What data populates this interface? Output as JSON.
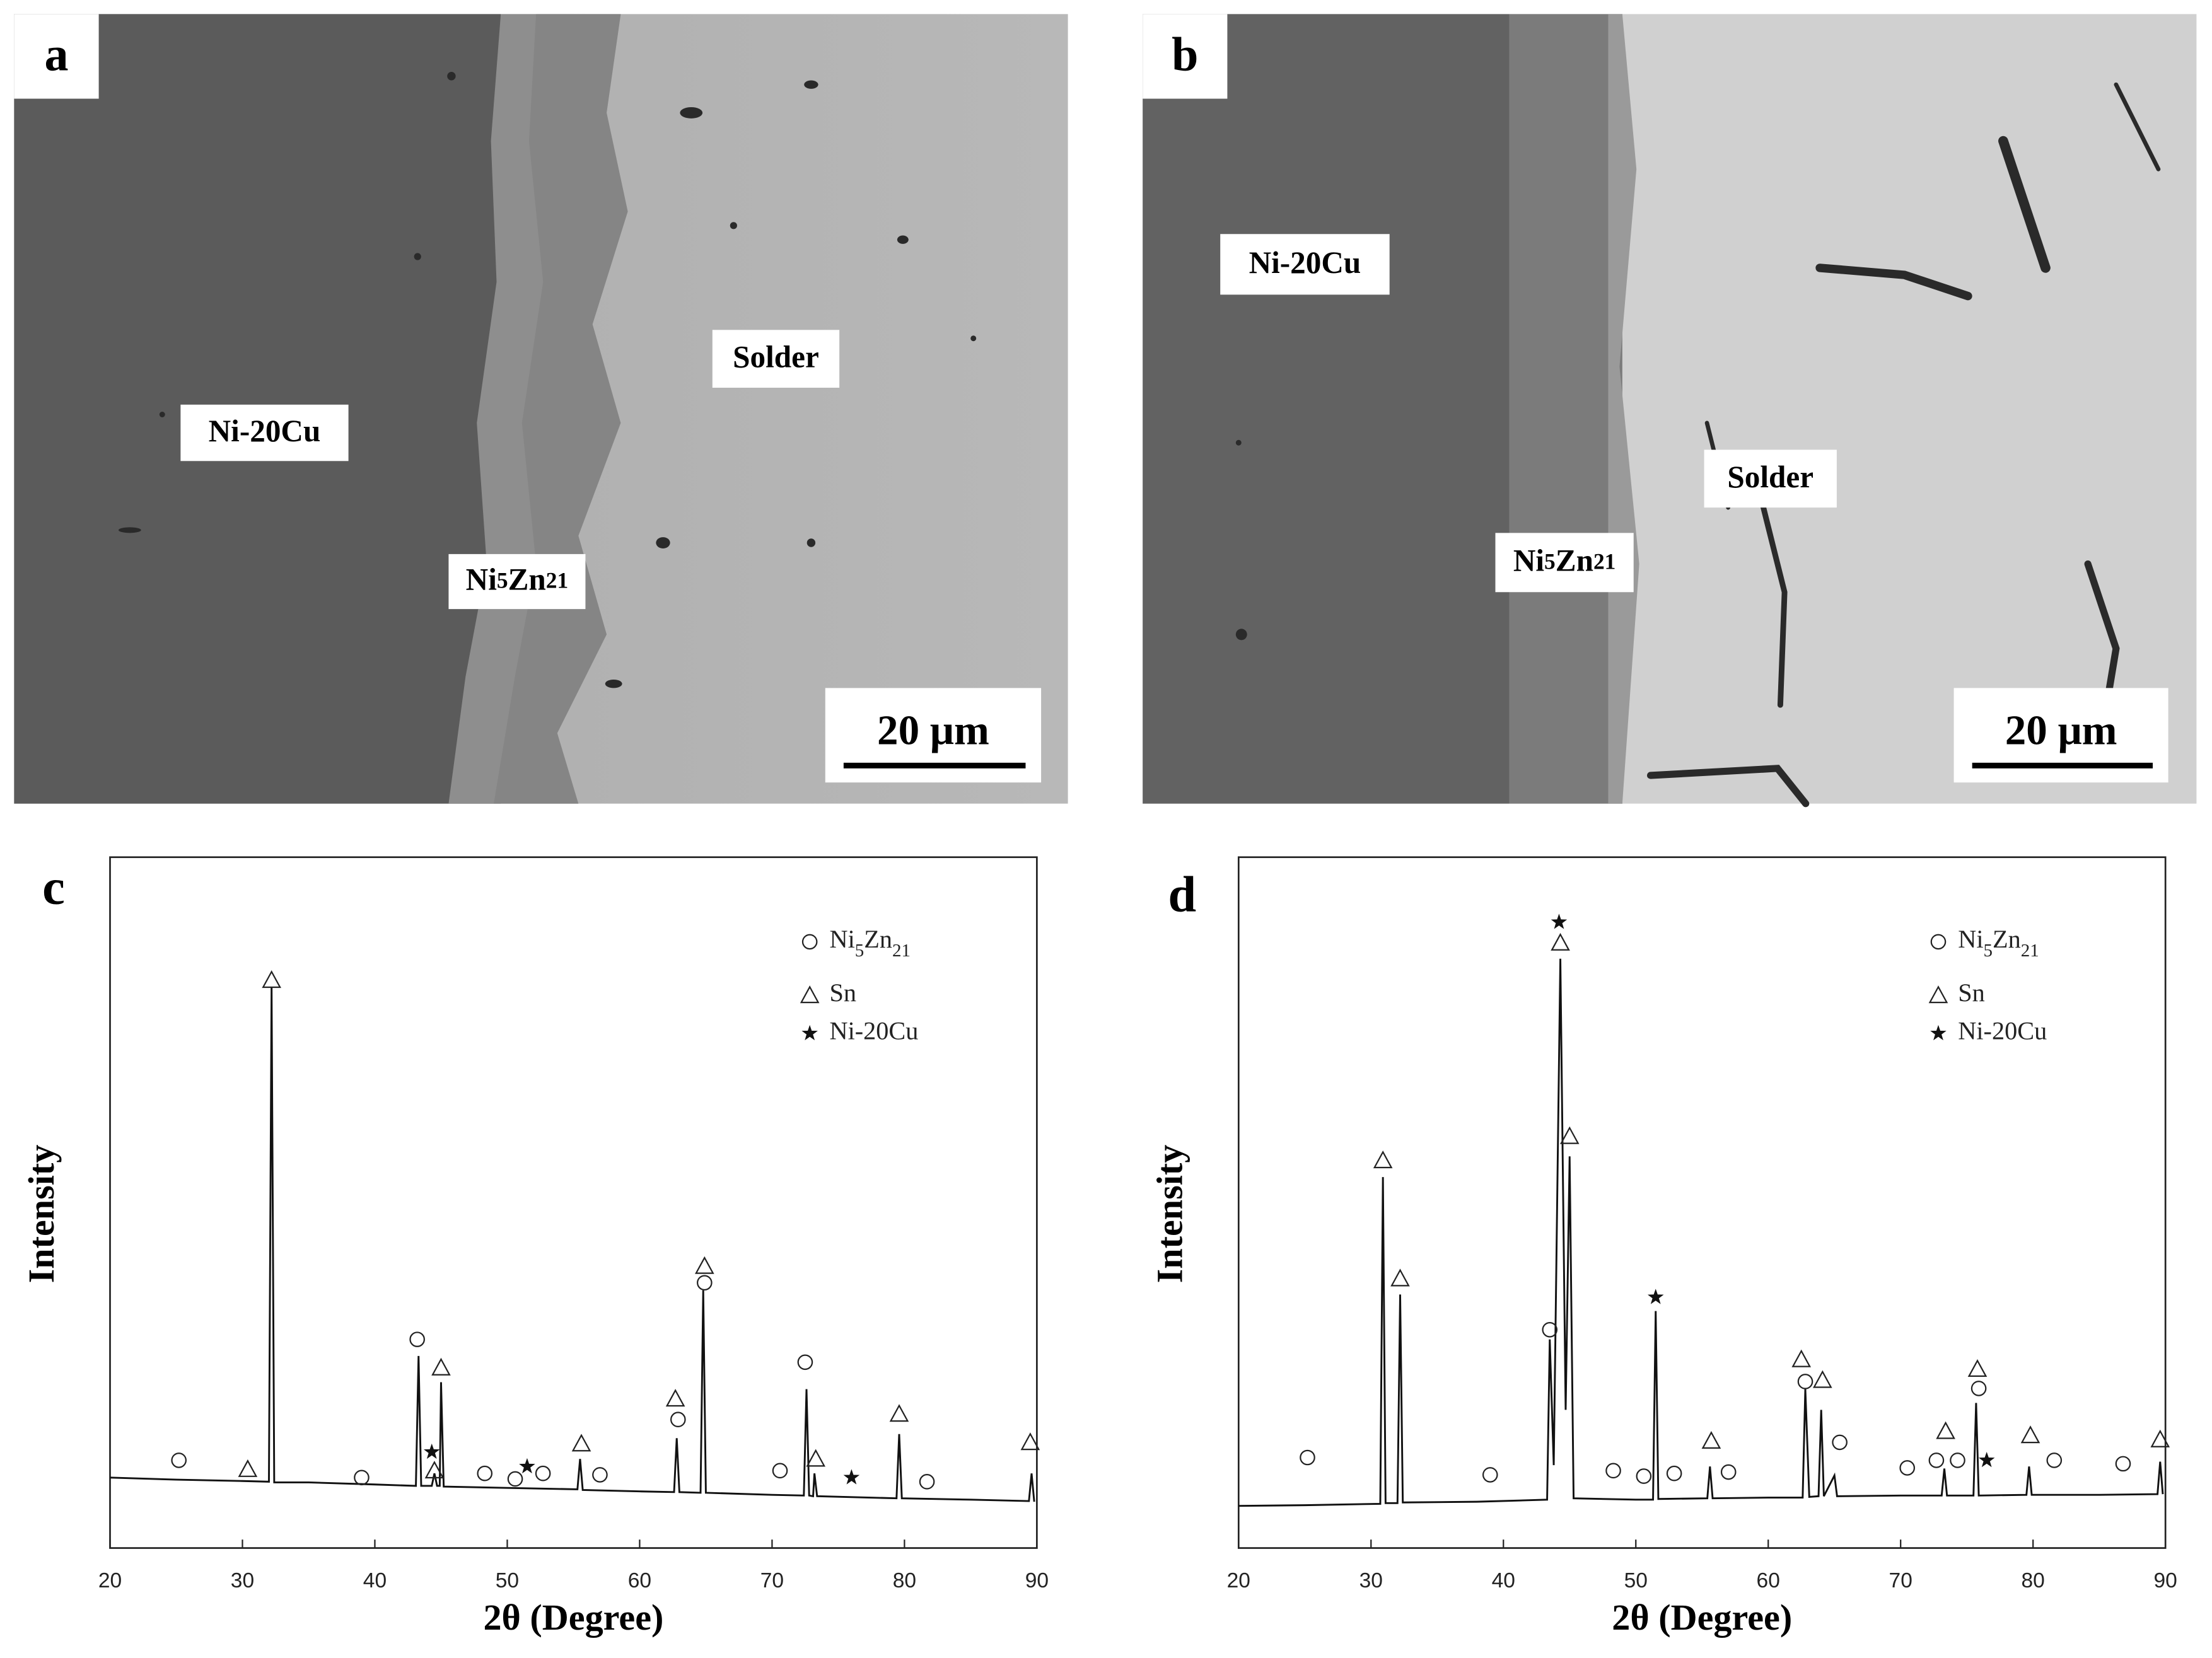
{
  "panels": [
    {
      "label": "a",
      "annotations": [
        "Ni-20Cu",
        "Ni5Zn21",
        "Solder"
      ],
      "scale_bar": "20 μm"
    },
    {
      "label": "b",
      "annotations": [
        "Ni-20Cu",
        "Ni5Zn21",
        "Solder"
      ],
      "scale_bar": "20 μm"
    }
  ],
  "chart_data": [
    {
      "type": "line",
      "panel_label": "c",
      "xlabel": "2θ (Degree)",
      "ylabel": "Intensity",
      "xlim": [
        20,
        90
      ],
      "ylim": [
        0,
        100
      ],
      "xticks": [
        20,
        30,
        40,
        50,
        60,
        70,
        80,
        90
      ],
      "x": [
        20,
        25,
        30,
        32.0,
        32.2,
        32.4,
        35,
        40,
        43.1,
        43.3,
        43.5,
        44.3,
        44.5,
        44.7,
        44.9,
        45.0,
        45.2,
        50,
        55.3,
        55.5,
        55.7,
        60,
        62.6,
        62.8,
        63.0,
        64.6,
        64.8,
        65.0,
        70,
        72.4,
        72.6,
        72.8,
        73.1,
        73.2,
        73.4,
        79.4,
        79.6,
        79.8,
        85,
        89.4,
        89.6,
        89.8
      ],
      "series": [
        {
          "color": "#111111",
          "values": [
            10.2,
            9.9,
            9.7,
            9.6,
            81.2,
            9.5,
            9.5,
            9.2,
            9.0,
            27.8,
            9.0,
            9.0,
            10.8,
            9.0,
            9.0,
            24,
            8.9,
            8.7,
            8.5,
            12.9,
            8.4,
            8.2,
            8.1,
            15.9,
            8.1,
            8.0,
            37.3,
            8.0,
            7.7,
            7.6,
            23,
            7.6,
            7.5,
            10.8,
            7.5,
            7.2,
            16.5,
            7.2,
            7.0,
            6.8,
            10.8,
            6.7
          ]
        }
      ],
      "markers": [
        {
          "name": "Ni5Zn21",
          "symbol": "circle",
          "subscript": true,
          "x": [
            25.2,
            39,
            43.2,
            48.3,
            50.6,
            52.7,
            57,
            62.9,
            64.9,
            70.6,
            72.5,
            81.7
          ],
          "values": [
            12.7,
            10.2,
            30.2,
            10.8,
            10,
            10.8,
            10.6,
            18.6,
            38.4,
            11.2,
            26.9,
            9.6
          ]
        },
        {
          "name": "Sn",
          "symbol": "triangle",
          "x": [
            30.4,
            32.2,
            44.5,
            45.0,
            55.6,
            62.7,
            64.9,
            73.3,
            79.6,
            89.5
          ],
          "values": [
            11.4,
            82.2,
            11.2,
            26.1,
            15.1,
            21.6,
            40.8,
            12.9,
            19.4,
            15.3
          ]
        },
        {
          "name": "Ni-20Cu",
          "symbol": "star",
          "x": [
            44.3,
            51.5,
            76.0
          ],
          "values": [
            13.9,
            11.8,
            10.2
          ]
        }
      ]
    },
    {
      "type": "line",
      "panel_label": "d",
      "xlabel": "2θ (Degree)",
      "ylabel": "Intensity",
      "xlim": [
        20,
        90
      ],
      "ylim": [
        0,
        100
      ],
      "xticks": [
        20,
        30,
        40,
        50,
        60,
        70,
        80,
        90
      ],
      "x": [
        20,
        25,
        30.7,
        30.9,
        31.1,
        32.0,
        32.2,
        32.4,
        38,
        43.3,
        43.5,
        43.8,
        44.3,
        44.7,
        45.0,
        45.3,
        50,
        51.3,
        51.5,
        51.7,
        55.4,
        55.6,
        55.8,
        60,
        62.6,
        62.8,
        63.1,
        63.8,
        64.0,
        64.2,
        65.0,
        65.2,
        70,
        73.1,
        73.3,
        73.5,
        75.5,
        75.7,
        75.9,
        79.5,
        79.7,
        79.9,
        85,
        89.4,
        89.6,
        89.8
      ],
      "series": [
        {
          "color": "#111111",
          "values": [
            6.1,
            6.2,
            6.4,
            53.7,
            6.5,
            6.5,
            36.7,
            6.6,
            6.7,
            7.0,
            30.2,
            12,
            85.3,
            20,
            56.7,
            7.2,
            7.0,
            7.0,
            34.3,
            7.1,
            7.2,
            11.8,
            7.2,
            7.3,
            7.3,
            23,
            7.4,
            7.5,
            20,
            7.5,
            10.5,
            7.5,
            7.6,
            7.6,
            11.5,
            7.6,
            7.6,
            21,
            7.6,
            7.7,
            11.8,
            7.7,
            7.7,
            7.8,
            12.5,
            7.8
          ]
        }
      ],
      "markers": [
        {
          "name": "Ni5Zn21",
          "symbol": "circle",
          "subscript": true,
          "x": [
            25.2,
            39,
            43.5,
            48.3,
            50.6,
            52.9,
            57.0,
            62.8,
            65.4,
            70.5,
            72.7,
            74.3,
            75.9,
            81.6,
            86.8
          ],
          "values": [
            13.1,
            10.6,
            31.6,
            11.2,
            10.4,
            10.8,
            11,
            24.1,
            15.3,
            11.6,
            12.7,
            12.7,
            23.1,
            12.7,
            12.2
          ]
        },
        {
          "name": "Sn",
          "symbol": "triangle",
          "x": [
            30.9,
            32.2,
            44.3,
            45.0,
            55.7,
            62.5,
            64.1,
            73.4,
            75.8,
            79.8,
            89.6
          ],
          "values": [
            56.1,
            39,
            87.6,
            59.6,
            15.5,
            27.3,
            24.3,
            16.9,
            25.9,
            16.3,
            15.7
          ]
        },
        {
          "name": "Ni-20Cu",
          "symbol": "star",
          "x": [
            44.2,
            51.5,
            76.5
          ],
          "values": [
            90.6,
            36.3,
            12.7
          ]
        }
      ]
    }
  ]
}
